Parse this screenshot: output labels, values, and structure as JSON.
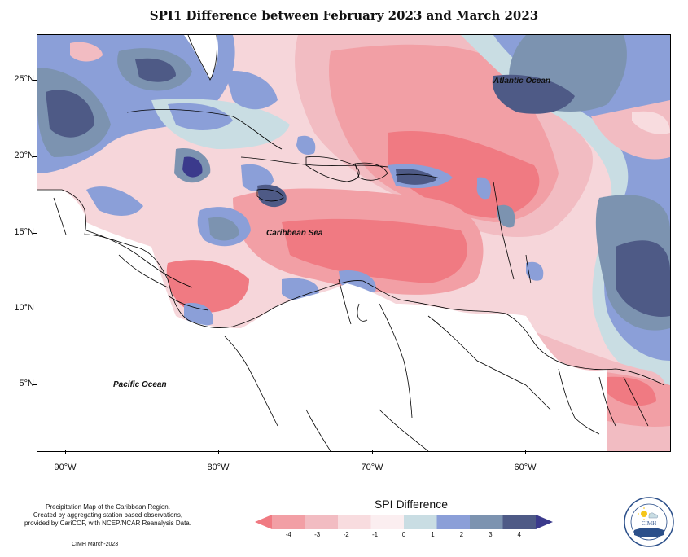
{
  "title": "SPI1 Difference between February 2023 and March 2023",
  "map_labels": {
    "atlantic": "Atlantic Ocean",
    "caribbean": "Caribbean Sea",
    "pacific": "Pacific Ocean"
  },
  "latitude_ticks": [
    "25°N",
    "20°N",
    "15°N",
    "10°N",
    "5°N"
  ],
  "longitude_ticks": [
    "90°W",
    "80°W",
    "70°W",
    "60°W"
  ],
  "legend": {
    "title": "SPI Difference",
    "ticks": [
      "-4",
      "-3",
      "-2",
      "-1",
      "0",
      "1",
      "2",
      "3",
      "4"
    ],
    "colors": [
      "#f07a82",
      "#f29fa5",
      "#f2bcc2",
      "#f8dcdf",
      "#fbeef0",
      "#c9dde3",
      "#8b9fd8",
      "#7c93b0",
      "#4e5a86",
      "#3b3a8c"
    ]
  },
  "footer": {
    "line1": "Precipitation Map of the Caribbean Region.",
    "line2": "Created by aggregating station based observations,",
    "line3": "provided by CariCOF, with NCEP/NCAR Reanalysis Data.",
    "date": "CIMH March-2023"
  },
  "logo_text": "CIMH"
}
